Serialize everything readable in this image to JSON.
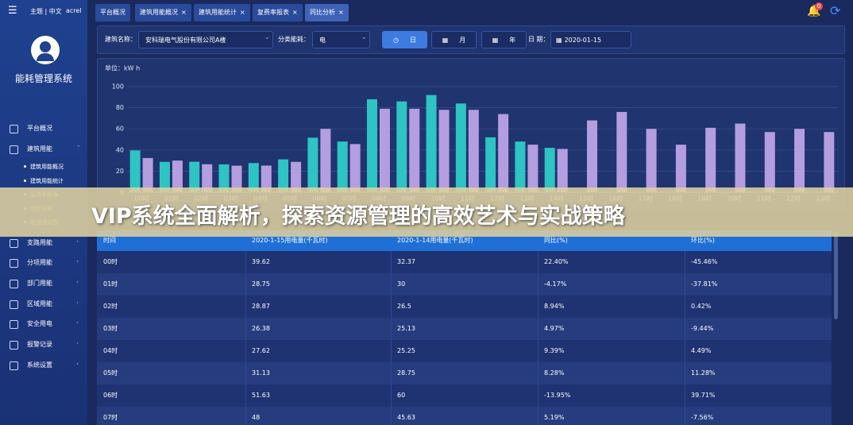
{
  "sidebar": {
    "top_bar": "主题 | 中文",
    "user": "acrel",
    "app_title": "能耗管理系统",
    "menu": [
      {
        "label": "平台概况"
      },
      {
        "label": "建筑用能",
        "children": [
          "建筑用能概况",
          "建筑用能统计",
          "复费率报表",
          "同比分析",
          "能源流向图"
        ]
      },
      {
        "label": "支路用能"
      },
      {
        "label": "分项用能"
      },
      {
        "label": "部门用能"
      },
      {
        "label": "区域用能"
      },
      {
        "label": "安全用电"
      },
      {
        "label": "报警记录"
      },
      {
        "label": "系统设置"
      }
    ]
  },
  "tabs": [
    "平台概况",
    "建筑用能概况",
    "建筑用能统计",
    "复费率报表",
    "同比分析"
  ],
  "notification_count": "0",
  "filters": {
    "building_label": "建筑名称：",
    "building": "安科瑞电气股份有限公司A楼",
    "category_label": "分类能耗：",
    "category": "电",
    "modes": [
      "日",
      "月",
      "年"
    ],
    "date_label": "日 期：",
    "date": "2020-01-15"
  },
  "chart_data": {
    "type": "bar",
    "y_label": "单位：kW h",
    "categories": [
      "00时",
      "01时",
      "02时",
      "03时",
      "04时",
      "05时",
      "06时",
      "07时",
      "08时",
      "09时",
      "10时",
      "11时",
      "12时",
      "13时",
      "14时",
      "15时",
      "16时",
      "17时",
      "18时",
      "19时",
      "20时",
      "21时",
      "22时",
      "23时"
    ],
    "series": [
      {
        "color": "#2ec4c4",
        "values": [
          39.62,
          28.75,
          28.87,
          26.38,
          27.62,
          31.13,
          51.63,
          48,
          88,
          86,
          92,
          84,
          52,
          48,
          42,
          null,
          null,
          null,
          null,
          null,
          null,
          null,
          null,
          null
        ]
      },
      {
        "color": "#b49ee0",
        "values": [
          32.37,
          30,
          26.5,
          25.13,
          25.25,
          28.75,
          60,
          45.63,
          79,
          79,
          78,
          78,
          74,
          45,
          41,
          68,
          76,
          60,
          45,
          61,
          65,
          57,
          60,
          57
        ]
      }
    ],
    "ylim": [
      0,
      100
    ],
    "yticks": [
      0,
      20,
      40,
      60,
      80,
      100
    ],
    "grid": true
  },
  "table": {
    "columns": [
      "时间",
      "2020-1-15用电量(千瓦时)",
      "2020-1-14用电量(千瓦时)",
      "同比(%)",
      "环比(%)"
    ],
    "rows": [
      [
        "00时",
        "39.62",
        "32.37",
        "22.40%",
        "-45.46%"
      ],
      [
        "01时",
        "28.75",
        "30",
        "-4.17%",
        "-37.81%"
      ],
      [
        "02时",
        "28.87",
        "26.5",
        "8.94%",
        "0.42%"
      ],
      [
        "03时",
        "26.38",
        "25.13",
        "4.97%",
        "-9.44%"
      ],
      [
        "04时",
        "27.62",
        "25.25",
        "9.39%",
        "4.49%"
      ],
      [
        "05时",
        "31.13",
        "28.75",
        "8.28%",
        "11.28%"
      ],
      [
        "06时",
        "51.63",
        "60",
        "-13.95%",
        "39.71%"
      ],
      [
        "07时",
        "48",
        "45.63",
        "5.19%",
        "-7.56%"
      ]
    ]
  },
  "banner": "VIP系统全面解析，探索资源管理的高效艺术与实战策略"
}
